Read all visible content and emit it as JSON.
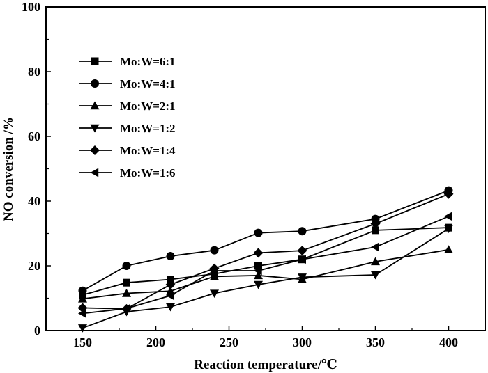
{
  "chart_data": {
    "type": "line",
    "title": "",
    "xlabel": "Reaction temperature/℃",
    "ylabel": "NO conversion /%",
    "xlim": [
      125,
      425
    ],
    "ylim": [
      0,
      100
    ],
    "xticks": [
      "150",
      "200",
      "250",
      "300",
      "350",
      "400"
    ],
    "yticks": [
      "0",
      "20",
      "40",
      "60",
      "80",
      "100"
    ],
    "grid": false,
    "legend_position": "upper-left",
    "x": [
      150,
      180,
      210,
      240,
      270,
      300,
      350,
      400
    ],
    "series": [
      {
        "name": "Mo:W=6:1",
        "marker": "square",
        "values": [
          11,
          14.8,
          15.8,
          17.5,
          20,
          22,
          31,
          31.8
        ]
      },
      {
        "name": "Mo:W=4:1",
        "marker": "circle",
        "values": [
          12.3,
          20,
          23,
          24.8,
          30.2,
          30.7,
          34.5,
          43.3
        ]
      },
      {
        "name": "Mo:W=2:1",
        "marker": "triangle-up",
        "values": [
          9.8,
          11.5,
          12.2,
          16.7,
          17,
          15.8,
          21.3,
          25
        ]
      },
      {
        "name": "Mo:W=1:2",
        "marker": "triangle-down",
        "values": [
          0.8,
          5.8,
          7.3,
          11.5,
          14.2,
          16.5,
          17.2,
          31.5
        ]
      },
      {
        "name": "Mo:W=1:4",
        "marker": "diamond",
        "values": [
          7,
          6.7,
          14.2,
          19.2,
          24,
          24.7,
          33,
          42.2
        ]
      },
      {
        "name": "Mo:W=1:6",
        "marker": "triangle-left",
        "values": [
          5.3,
          6.8,
          10.8,
          18.5,
          18.5,
          22,
          25.8,
          35.3
        ]
      }
    ]
  }
}
